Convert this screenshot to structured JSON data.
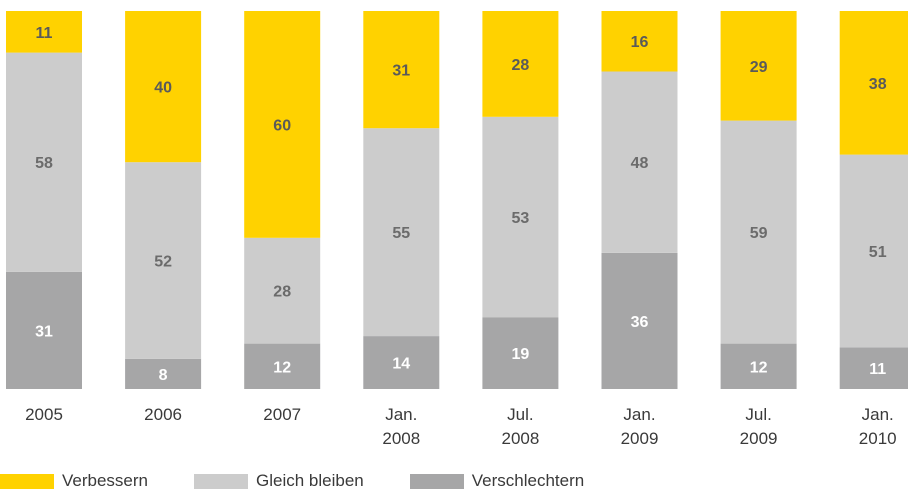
{
  "chart_data": {
    "type": "bar",
    "stacked": true,
    "orientation": "vertical",
    "categories": [
      [
        "2005"
      ],
      [
        "2006"
      ],
      [
        "2007"
      ],
      [
        "Jan.",
        "2008"
      ],
      [
        "Jul.",
        "2008"
      ],
      [
        "Jan.",
        "2009"
      ],
      [
        "Jul.",
        "2009"
      ],
      [
        "Jan.",
        "2010"
      ]
    ],
    "series": [
      {
        "name": "Verschlechtern",
        "color": "#a6a6a7",
        "label_color": "#ffffff",
        "values": [
          31,
          8,
          12,
          14,
          19,
          36,
          12,
          11
        ]
      },
      {
        "name": "Gleich bleiben",
        "color": "#cccccc",
        "label_color": "#6b6b6b",
        "values": [
          58,
          52,
          28,
          55,
          53,
          48,
          59,
          51
        ]
      },
      {
        "name": "Verbessern",
        "color": "#ffd200",
        "label_color": "#5a5a5a",
        "values": [
          11,
          40,
          60,
          31,
          28,
          16,
          29,
          38
        ]
      }
    ],
    "legend_order": [
      "Verbessern",
      "Gleich bleiben",
      "Verschlechtern"
    ],
    "ylim": [
      0,
      100
    ],
    "legend_position": "bottom-left",
    "grid": false,
    "title": "",
    "xlabel": "",
    "ylabel": ""
  }
}
